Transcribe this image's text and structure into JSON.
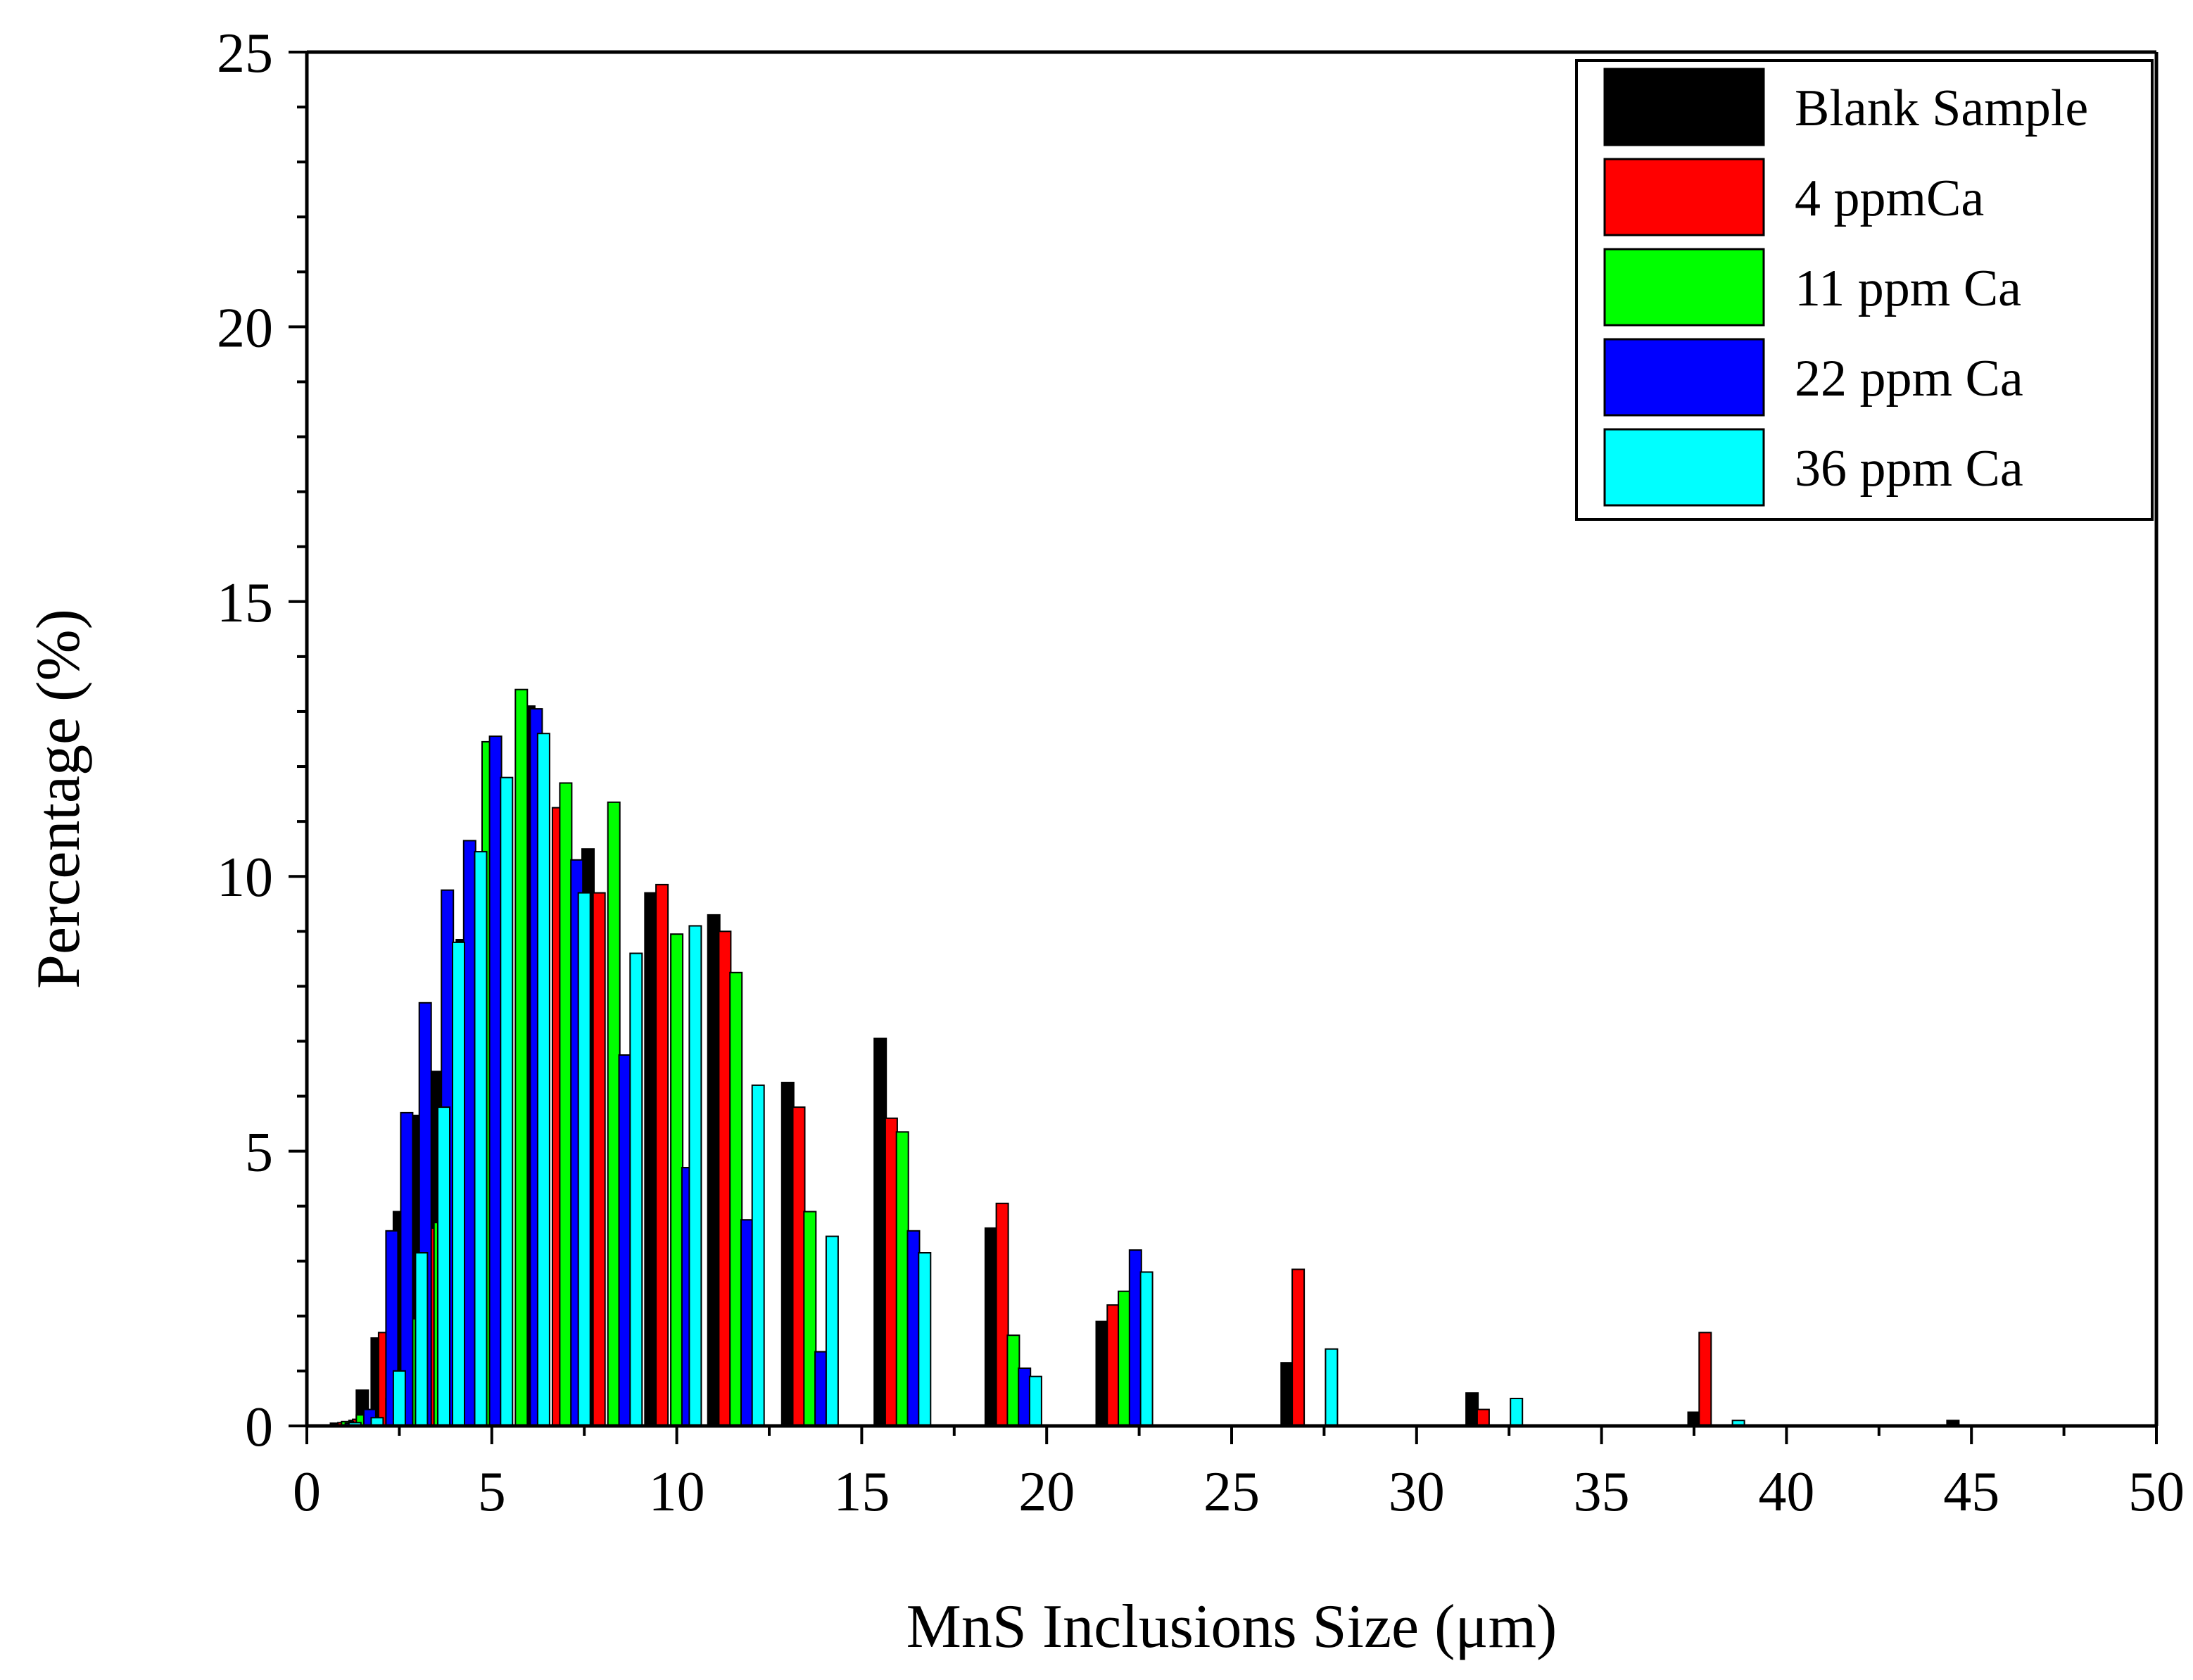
{
  "chart_data": {
    "type": "bar",
    "title": "",
    "xlabel": "MnS Inclusions Size (μm)",
    "ylabel": "Percentage (%)",
    "xlim": [
      0,
      50
    ],
    "ylim": [
      0,
      25
    ],
    "x_ticks": [
      0,
      5,
      10,
      15,
      20,
      25,
      30,
      35,
      40,
      45,
      50
    ],
    "x_tick_labels": [
      "0",
      "5",
      "10",
      "15",
      "20",
      "25",
      "30",
      "35",
      "40",
      "45",
      "50"
    ],
    "y_ticks": [
      0,
      5,
      10,
      15,
      20,
      25
    ],
    "y_tick_labels": [
      "0",
      "5",
      "10",
      "15",
      "20",
      "25"
    ],
    "legend_position": "top-right",
    "series": [
      {
        "name": "Blank Sample",
        "color": "#000000",
        "points": [
          [
            0.8,
            0.05
          ],
          [
            1.3,
            0.1
          ],
          [
            1.5,
            0.65
          ],
          [
            1.9,
            1.6
          ],
          [
            2.5,
            3.9
          ],
          [
            3.0,
            5.65
          ],
          [
            3.5,
            6.45
          ],
          [
            4.2,
            8.85
          ],
          [
            6.0,
            13.1
          ],
          [
            7.6,
            10.5
          ],
          [
            9.3,
            9.7
          ],
          [
            11.0,
            9.3
          ],
          [
            13.0,
            6.25
          ],
          [
            15.5,
            7.05
          ],
          [
            18.5,
            3.6
          ],
          [
            21.5,
            1.9
          ],
          [
            26.5,
            1.15
          ],
          [
            31.5,
            0.6
          ],
          [
            37.5,
            0.25
          ],
          [
            44.5,
            0.1
          ]
        ]
      },
      {
        "name": "4 ppmCa",
        "color": "#ff0000",
        "points": [
          [
            1.0,
            0.06
          ],
          [
            1.4,
            0.12
          ],
          [
            2.1,
            1.7
          ],
          [
            2.7,
            2.0
          ],
          [
            3.3,
            3.6
          ],
          [
            4.0,
            5.9
          ],
          [
            6.8,
            11.25
          ],
          [
            7.9,
            9.7
          ],
          [
            9.6,
            9.85
          ],
          [
            11.3,
            9.0
          ],
          [
            13.3,
            5.8
          ],
          [
            15.8,
            5.6
          ],
          [
            18.8,
            4.05
          ],
          [
            21.8,
            2.2
          ],
          [
            26.8,
            2.85
          ],
          [
            31.8,
            0.3
          ],
          [
            37.8,
            1.7
          ]
        ]
      },
      {
        "name": "11 ppm Ca",
        "color": "#00ff00",
        "points": [
          [
            1.1,
            0.08
          ],
          [
            1.5,
            0.2
          ],
          [
            2.3,
            0.5
          ],
          [
            2.9,
            1.95
          ],
          [
            3.6,
            3.7
          ],
          [
            4.9,
            12.45
          ],
          [
            5.8,
            13.4
          ],
          [
            7.0,
            11.7
          ],
          [
            8.3,
            11.35
          ],
          [
            10.0,
            8.95
          ],
          [
            11.6,
            8.25
          ],
          [
            13.6,
            3.9
          ],
          [
            16.1,
            5.35
          ],
          [
            19.1,
            1.65
          ],
          [
            22.1,
            2.45
          ]
        ]
      },
      {
        "name": "22 ppm Ca",
        "color": "#0000ff",
        "points": [
          [
            1.2,
            0.05
          ],
          [
            1.7,
            0.3
          ],
          [
            2.4,
            1.0
          ],
          [
            2.3,
            3.55
          ],
          [
            2.7,
            5.7
          ],
          [
            3.2,
            7.7
          ],
          [
            3.8,
            9.75
          ],
          [
            4.4,
            10.65
          ],
          [
            5.1,
            12.55
          ],
          [
            6.2,
            13.05
          ],
          [
            7.3,
            10.3
          ],
          [
            8.6,
            6.75
          ],
          [
            10.3,
            4.7
          ],
          [
            11.9,
            3.75
          ],
          [
            13.9,
            1.35
          ],
          [
            16.4,
            3.55
          ],
          [
            19.4,
            1.05
          ],
          [
            22.4,
            3.2
          ]
        ]
      },
      {
        "name": "36 ppm Ca",
        "color": "#00ffff",
        "points": [
          [
            1.3,
            0.06
          ],
          [
            1.9,
            0.15
          ],
          [
            2.5,
            1.0
          ],
          [
            3.1,
            3.15
          ],
          [
            3.7,
            5.8
          ],
          [
            4.1,
            8.8
          ],
          [
            4.7,
            10.45
          ],
          [
            5.4,
            11.8
          ],
          [
            6.4,
            12.6
          ],
          [
            7.5,
            9.7
          ],
          [
            8.9,
            8.6
          ],
          [
            10.5,
            9.1
          ],
          [
            12.2,
            6.2
          ],
          [
            14.2,
            3.45
          ],
          [
            16.7,
            3.15
          ],
          [
            19.7,
            0.9
          ],
          [
            22.7,
            2.8
          ],
          [
            27.7,
            1.4
          ],
          [
            32.7,
            0.5
          ],
          [
            38.7,
            0.1
          ]
        ]
      }
    ]
  }
}
